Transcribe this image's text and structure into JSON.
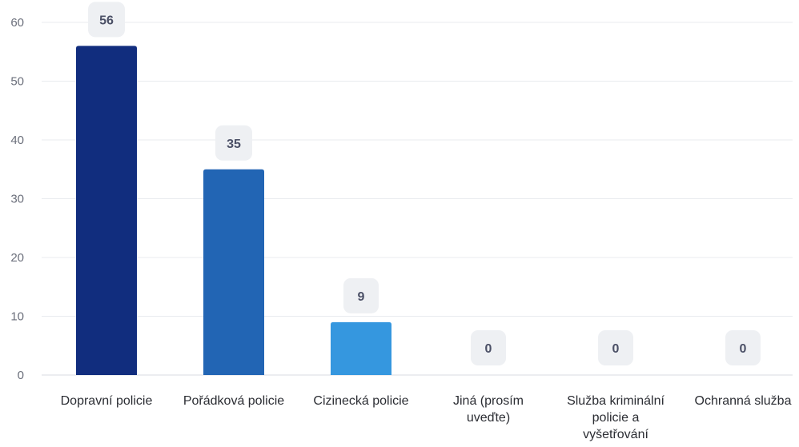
{
  "chart_data": {
    "type": "bar",
    "categories": [
      "Dopravní policie",
      "Pořádková policie",
      "Cizinecká policie",
      "Jiná (prosím uveďte)",
      "Služba kriminální policie a vyšetřování",
      "Ochranná služba"
    ],
    "category_lines": [
      [
        "Dopravní policie"
      ],
      [
        "Pořádková policie"
      ],
      [
        "Cizinecká policie"
      ],
      [
        "Jiná (prosím",
        "uveďte)"
      ],
      [
        "Služba kriminální",
        "policie a",
        "vyšetřování"
      ],
      [
        "Ochranná služba"
      ]
    ],
    "values": [
      56,
      35,
      9,
      0,
      0,
      0
    ],
    "value_labels": [
      "56",
      "35",
      "9",
      "0",
      "0",
      "0"
    ],
    "bar_colors": [
      "#112d7e",
      "#2265b4",
      "#3597df",
      "#3597df",
      "#3597df",
      "#3597df"
    ],
    "ylim": [
      0,
      60
    ],
    "yticks": [
      "0",
      "10",
      "20",
      "30",
      "40",
      "50",
      "60"
    ],
    "grid": true,
    "title": "",
    "xlabel": "",
    "ylabel": ""
  }
}
